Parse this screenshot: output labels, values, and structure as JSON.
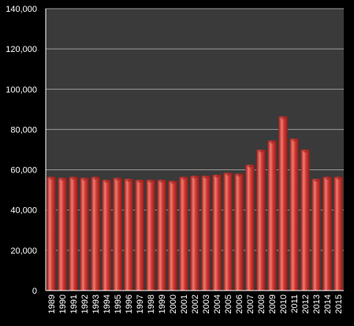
{
  "chart_data": {
    "type": "bar",
    "categories": [
      "1989",
      "1990",
      "1991",
      "1992",
      "1993",
      "1994",
      "1995",
      "1996",
      "1997",
      "1998",
      "1999",
      "2000",
      "2001",
      "2002",
      "2003",
      "2004",
      "2005",
      "2006",
      "2007",
      "2008",
      "2009",
      "2010",
      "2011",
      "2012",
      "2013",
      "2014",
      "2015"
    ],
    "values": [
      56500,
      56000,
      56500,
      56000,
      56500,
      55000,
      56000,
      55500,
      55000,
      55000,
      55000,
      54500,
      56500,
      57000,
      57000,
      57500,
      58500,
      58000,
      62500,
      70000,
      74500,
      86500,
      75500,
      70000,
      55500,
      56500,
      56500
    ],
    "ylim": [
      0,
      140000
    ],
    "yticks": [
      "0",
      "20,000",
      "40,000",
      "60,000",
      "80,000",
      "100,000",
      "120,000",
      "140,000"
    ],
    "ytick_values": [
      0,
      20000,
      40000,
      60000,
      80000,
      100000,
      120000,
      140000
    ],
    "grid": true,
    "colors": {
      "page_background": "#000000",
      "plot_background": "#3a3a3a",
      "grid": "#9a9a9a",
      "bar": "#d23b35",
      "bar_light": "#f07a70",
      "bar_dark": "#8e1c18",
      "text": "#ffffff"
    }
  }
}
